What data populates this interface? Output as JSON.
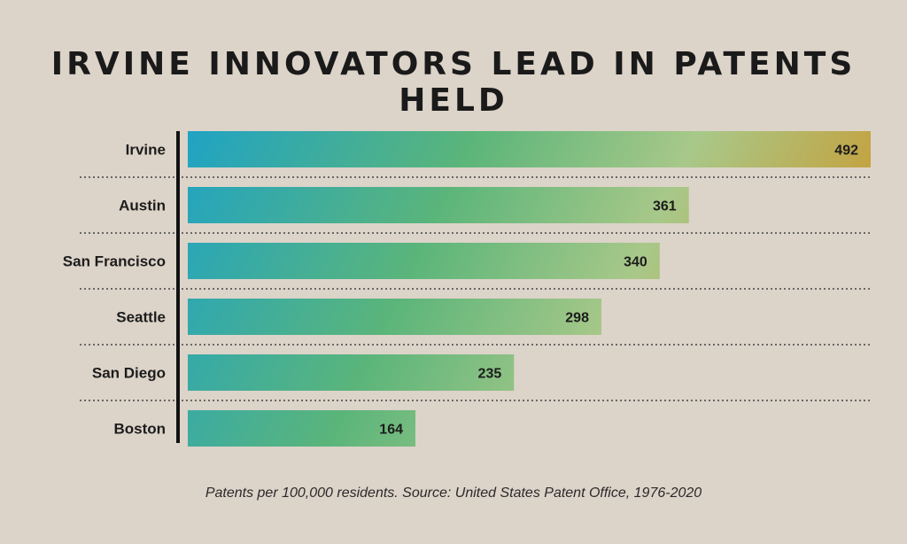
{
  "chart_data": {
    "type": "bar",
    "orientation": "horizontal",
    "title": "IRVINE INNOVATORS LEAD IN PATENTS HELD",
    "caption": "Patents per 100,000 residents. Source: United States Patent Office, 1976-2020",
    "categories": [
      "Irvine",
      "Austin",
      "San Francisco",
      "Seattle",
      "San Diego",
      "Boston"
    ],
    "values": [
      492,
      361,
      340,
      298,
      235,
      164
    ],
    "xlim": [
      0,
      492
    ],
    "grid": false,
    "data_labels": true
  },
  "colors": {
    "background": "#dcd3c9",
    "gradient_start": "#1fa3c4",
    "gradient_mid1": "#5bb57a",
    "gradient_mid2": "#a8c889",
    "gradient_end": "#d68a12",
    "axis": "#111111",
    "separator": "#444444"
  }
}
